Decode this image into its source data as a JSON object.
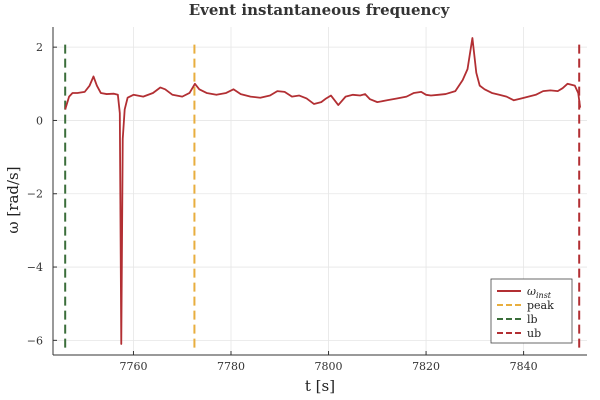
{
  "chart_data": {
    "type": "line",
    "title": "Event instantaneous frequency",
    "xlabel": "t [s]",
    "ylabel": "ω [rad/s]",
    "xlim": [
      7743.5,
      7853
    ],
    "ylim": [
      -6.4,
      2.55
    ],
    "xticks": [
      7760,
      7780,
      7800,
      7820,
      7840
    ],
    "yticks": [
      -6,
      -4,
      -2,
      0,
      2
    ],
    "grid": true,
    "legend_position": "bottom-right",
    "series": [
      {
        "name": "ω_inst",
        "legend_main": "ω",
        "legend_sub": "inst",
        "color": "#b22f33",
        "style": "solid",
        "x": [
          7746,
          7746.8,
          7747.5,
          7748.5,
          7750,
          7751,
          7751.8,
          7752.5,
          7753.3,
          7754.5,
          7756,
          7756.8,
          7757.2,
          7757.5,
          7757.8,
          7758.2,
          7758.8,
          7760,
          7762,
          7764,
          7765.5,
          7766.5,
          7768,
          7770,
          7771.5,
          7772.6,
          7773.5,
          7775,
          7777,
          7779,
          7780.5,
          7782,
          7784,
          7786,
          7788,
          7789.5,
          7791,
          7792.5,
          7794,
          7795.5,
          7797,
          7798.5,
          7799.5,
          7800.5,
          7802,
          7803.5,
          7805,
          7806.5,
          7807.5,
          7808.5,
          7810,
          7812,
          7814,
          7816,
          7817.5,
          7819,
          7820,
          7821,
          7822.5,
          7824,
          7826,
          7827.5,
          7828.5,
          7829.5,
          7830.3,
          7831,
          7832,
          7833.5,
          7835,
          7836.5,
          7838,
          7839.5,
          7841,
          7842.5,
          7844,
          7845.5,
          7847,
          7848,
          7849,
          7850.5,
          7851.2,
          7851.6
        ],
        "y": [
          0.3,
          0.65,
          0.75,
          0.75,
          0.78,
          0.95,
          1.2,
          0.95,
          0.75,
          0.72,
          0.73,
          0.7,
          0.2,
          -6.1,
          -0.5,
          0.3,
          0.62,
          0.7,
          0.65,
          0.75,
          0.9,
          0.85,
          0.7,
          0.65,
          0.75,
          1.0,
          0.85,
          0.75,
          0.7,
          0.75,
          0.85,
          0.72,
          0.65,
          0.62,
          0.68,
          0.8,
          0.78,
          0.65,
          0.68,
          0.6,
          0.45,
          0.5,
          0.6,
          0.68,
          0.42,
          0.65,
          0.7,
          0.68,
          0.72,
          0.58,
          0.5,
          0.55,
          0.6,
          0.65,
          0.75,
          0.78,
          0.7,
          0.68,
          0.7,
          0.72,
          0.8,
          1.1,
          1.4,
          2.25,
          1.3,
          0.95,
          0.85,
          0.75,
          0.7,
          0.65,
          0.55,
          0.6,
          0.65,
          0.7,
          0.8,
          0.82,
          0.8,
          0.88,
          1.0,
          0.95,
          0.75,
          0.35
        ]
      },
      {
        "name": "peak",
        "color": "#e8ae3e",
        "style": "dashed",
        "x": [
          7772.5,
          7772.5
        ],
        "y": [
          -6.2,
          2.2
        ]
      },
      {
        "name": "lb",
        "color": "#3b6e3b",
        "style": "dashed",
        "x": [
          7746,
          7746
        ],
        "y": [
          -6.2,
          2.2
        ]
      },
      {
        "name": "ub",
        "color": "#b22f33",
        "style": "dashed",
        "x": [
          7851.4,
          7851.4
        ],
        "y": [
          -6.2,
          2.2
        ]
      }
    ]
  }
}
